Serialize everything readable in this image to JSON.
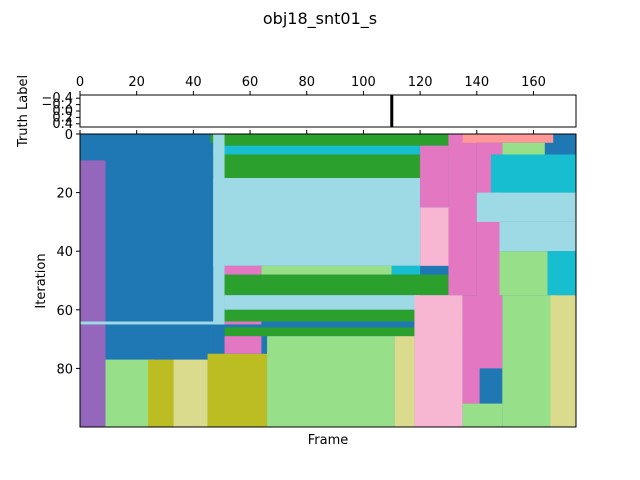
{
  "chart_data": [
    {
      "type": "heatmap",
      "panel": "truth",
      "title": "obj18_snt01_s",
      "ylabel": "Truth Label",
      "xlim": [
        0,
        175
      ],
      "ylim": [
        0.5,
        -0.5
      ],
      "x_ticks": [
        0,
        20,
        40,
        60,
        80,
        100,
        120,
        140,
        160
      ],
      "x_ticks_position": "top",
      "y_ticks": [
        "−0.4",
        "−0.2",
        "0.0",
        "0.2",
        "0.4"
      ],
      "y_tick_values": [
        -0.4,
        -0.2,
        0.0,
        0.2,
        0.4
      ],
      "marker_frame": 110,
      "marker_color": "#000000"
    },
    {
      "type": "heatmap",
      "panel": "iterations",
      "xlabel": "Frame",
      "ylabel": "Iteration",
      "xlim": [
        0,
        175
      ],
      "ylim": [
        100,
        0
      ],
      "y_ticks": [
        0,
        20,
        40,
        60,
        80
      ],
      "colormap": "tab20",
      "background_color": "#1f77b4",
      "segments": [
        {
          "x0": 0,
          "x1": 9,
          "y0": 9,
          "y1": 100,
          "color": "#9467bd"
        },
        {
          "x0": 9,
          "x1": 47,
          "y0": 0,
          "y1": 100,
          "color": "#1f77b4"
        },
        {
          "x0": 9,
          "x1": 26,
          "y0": 77,
          "y1": 100,
          "color": "#98df8a"
        },
        {
          "x0": 24,
          "x1": 33,
          "y0": 77,
          "y1": 100,
          "color": "#bcbd22"
        },
        {
          "x0": 33,
          "x1": 45,
          "y0": 77,
          "y1": 100,
          "color": "#dbdb8d"
        },
        {
          "x0": 45,
          "x1": 66,
          "y0": 75,
          "y1": 100,
          "color": "#bcbd22"
        },
        {
          "x0": 46,
          "x1": 51,
          "y0": 0,
          "y1": 3,
          "color": "#2ca02c"
        },
        {
          "x0": 47,
          "x1": 120,
          "y0": 15,
          "y1": 45,
          "color": "#9edae5"
        },
        {
          "x0": 47,
          "x1": 135,
          "y0": 0,
          "y1": 4,
          "color": "#2ca02c"
        },
        {
          "x0": 47,
          "x1": 132,
          "y0": 4,
          "y1": 7,
          "color": "#17becf"
        },
        {
          "x0": 47,
          "x1": 125,
          "y0": 7,
          "y1": 15,
          "color": "#2ca02c"
        },
        {
          "x0": 51,
          "x1": 64,
          "y0": 45,
          "y1": 48,
          "color": "#e377c2"
        },
        {
          "x0": 64,
          "x1": 110,
          "y0": 45,
          "y1": 48,
          "color": "#98df8a"
        },
        {
          "x0": 110,
          "x1": 120,
          "y0": 45,
          "y1": 48,
          "color": "#17becf"
        },
        {
          "x0": 51,
          "x1": 130,
          "y0": 48,
          "y1": 55,
          "color": "#2ca02c"
        },
        {
          "x0": 51,
          "x1": 120,
          "y0": 55,
          "y1": 60,
          "color": "#9edae5"
        },
        {
          "x0": 51,
          "x1": 138,
          "y0": 60,
          "y1": 64,
          "color": "#2ca02c"
        },
        {
          "x0": 51,
          "x1": 64,
          "y0": 64,
          "y1": 65,
          "color": "#e377c2"
        },
        {
          "x0": 51,
          "x1": 138,
          "y0": 66,
          "y1": 69,
          "color": "#2ca02c"
        },
        {
          "x0": 51,
          "x1": 64,
          "y0": 69,
          "y1": 75,
          "color": "#e377c2"
        },
        {
          "x0": 66,
          "x1": 111,
          "y0": 69,
          "y1": 100,
          "color": "#98df8a"
        },
        {
          "x0": 111,
          "x1": 118,
          "y0": 69,
          "y1": 100,
          "color": "#dbdb8d"
        },
        {
          "x0": 118,
          "x1": 135,
          "y0": 55,
          "y1": 100,
          "color": "#f7b6d2"
        },
        {
          "x0": 120,
          "x1": 138,
          "y0": 25,
          "y1": 45,
          "color": "#f7b6d2"
        },
        {
          "x0": 120,
          "x1": 130,
          "y0": 4,
          "y1": 25,
          "color": "#e377c2"
        },
        {
          "x0": 130,
          "x1": 140,
          "y0": 0,
          "y1": 55,
          "color": "#e377c2"
        },
        {
          "x0": 135,
          "x1": 141,
          "y0": 55,
          "y1": 92,
          "color": "#e377c2"
        },
        {
          "x0": 140,
          "x1": 149,
          "y0": 3,
          "y1": 80,
          "color": "#e377c2"
        },
        {
          "x0": 135,
          "x1": 149,
          "y0": 92,
          "y1": 100,
          "color": "#98df8a"
        },
        {
          "x0": 149,
          "x1": 168,
          "y0": 55,
          "y1": 100,
          "color": "#98df8a"
        },
        {
          "x0": 166,
          "x1": 175,
          "y0": 55,
          "y1": 100,
          "color": "#dbdb8d"
        },
        {
          "x0": 145,
          "x1": 175,
          "y0": 7,
          "y1": 20,
          "color": "#17becf"
        },
        {
          "x0": 140,
          "x1": 175,
          "y0": 20,
          "y1": 30,
          "color": "#9edae5"
        },
        {
          "x0": 148,
          "x1": 175,
          "y0": 30,
          "y1": 40,
          "color": "#9edae5"
        },
        {
          "x0": 148,
          "x1": 165,
          "y0": 40,
          "y1": 55,
          "color": "#98df8a"
        },
        {
          "x0": 165,
          "x1": 175,
          "y0": 40,
          "y1": 55,
          "color": "#17becf"
        },
        {
          "x0": 135,
          "x1": 167,
          "y0": 0,
          "y1": 3,
          "color": "#ff9896"
        },
        {
          "x0": 149,
          "x1": 164,
          "y0": 3,
          "y1": 7,
          "color": "#98df8a"
        },
        {
          "x0": 167,
          "x1": 175,
          "y0": 0,
          "y1": 5,
          "color": "#1f77b4"
        },
        {
          "x0": 0,
          "x1": 51,
          "y0": 64,
          "y1": 65,
          "color": "#9edae5"
        },
        {
          "x0": 47,
          "x1": 51,
          "y0": 0,
          "y1": 65,
          "color": "#9edae5"
        }
      ]
    }
  ]
}
